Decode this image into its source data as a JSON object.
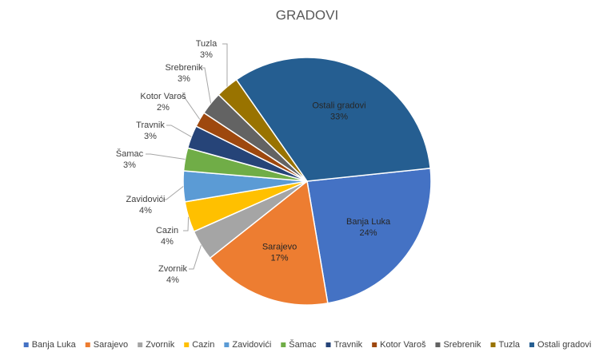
{
  "chart_data": {
    "type": "pie",
    "title": "GRADOVI",
    "categories": [
      "Banja Luka",
      "Sarajevo",
      "Zvornik",
      "Cazin",
      "Zavidovići",
      "Šamac",
      "Travnik",
      "Kotor Varoš",
      "Srebrenik",
      "Tuzla",
      "Ostali gradovi"
    ],
    "values": [
      24,
      17,
      4,
      4,
      4,
      3,
      3,
      2,
      3,
      3,
      33
    ],
    "value_labels": [
      "24%",
      "17%",
      "4%",
      "4%",
      "4%",
      "3%",
      "3%",
      "2%",
      "3%",
      "3%",
      "33%"
    ],
    "colors": [
      "#4472c4",
      "#ed7d31",
      "#a5a5a5",
      "#ffc000",
      "#5b9bd5",
      "#70ad47",
      "#264478",
      "#9e480e",
      "#636363",
      "#997300",
      "#255e91"
    ],
    "legend": "bottom"
  }
}
